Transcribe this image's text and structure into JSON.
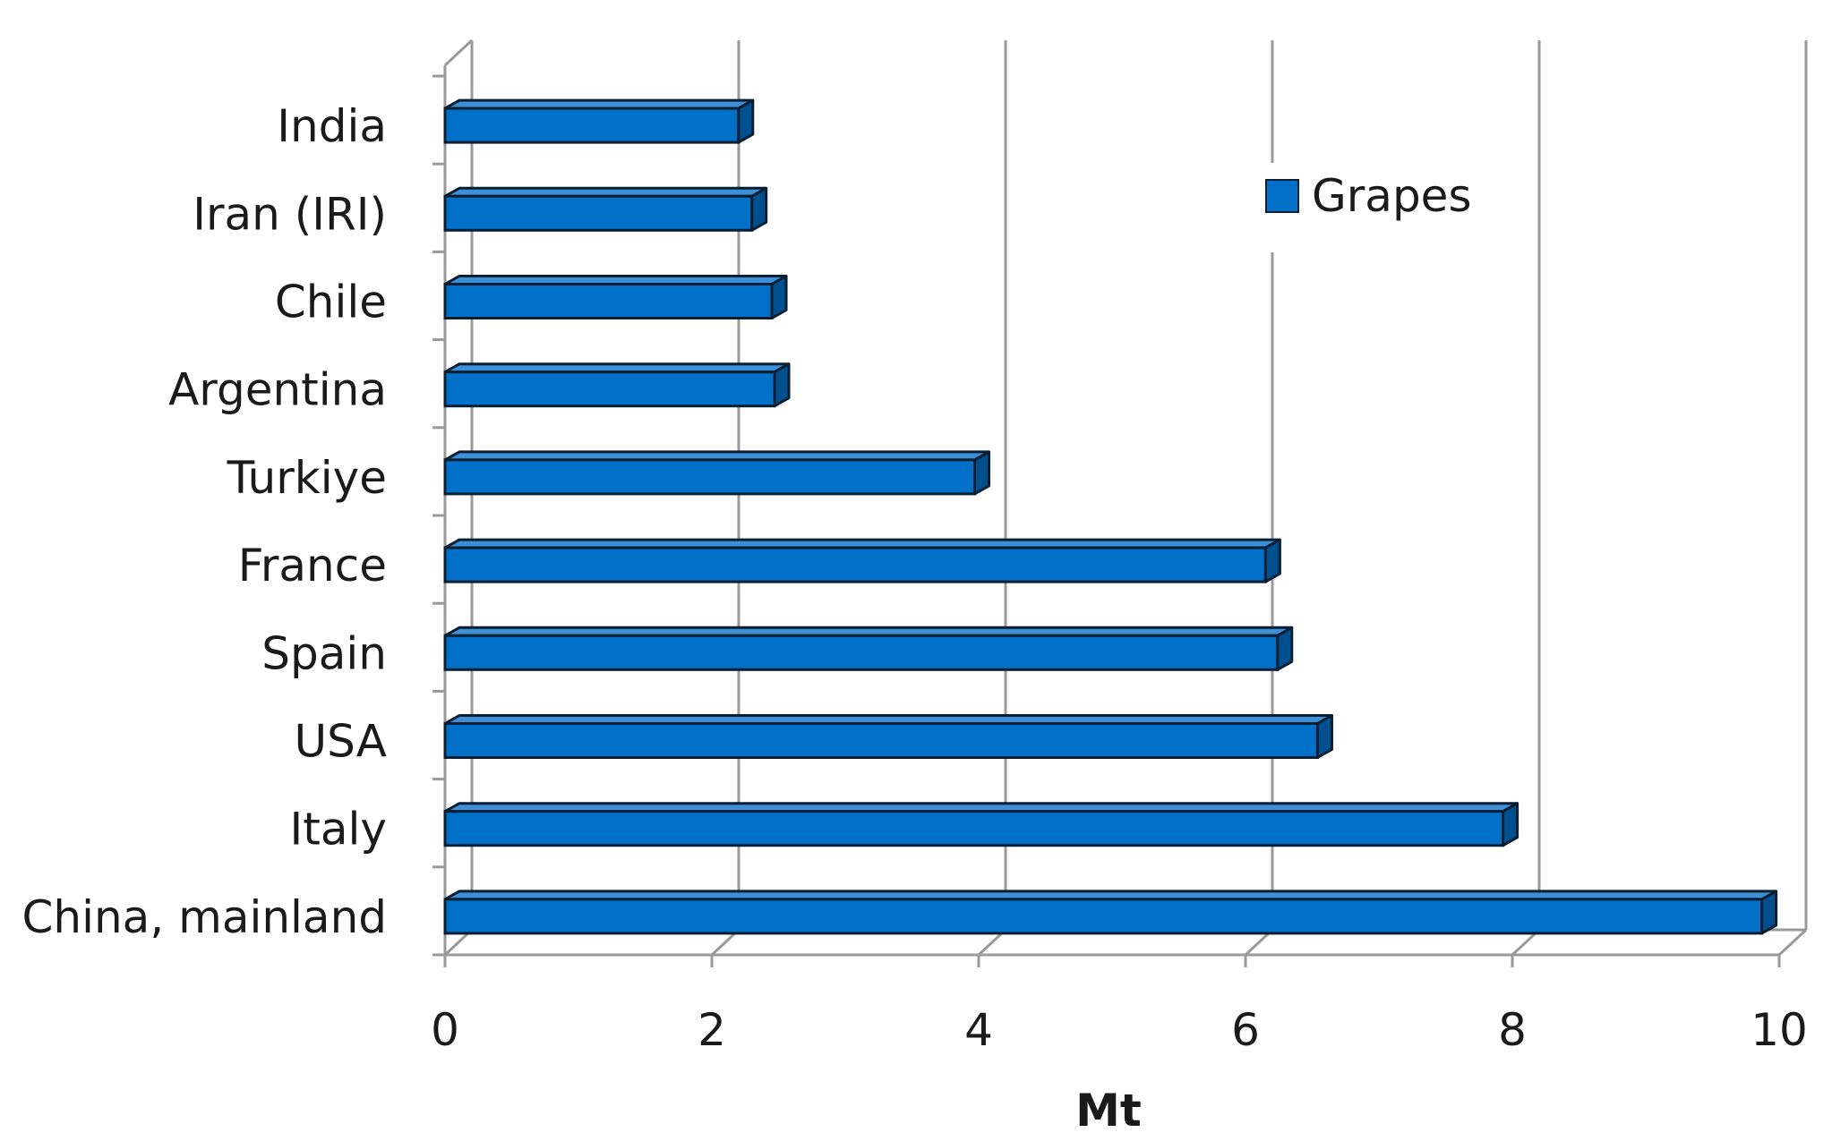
{
  "chart_data": {
    "type": "bar",
    "orientation": "horizontal",
    "style": "3d",
    "categories": [
      "India",
      "Iran (IRI)",
      "Chile",
      "Argentina",
      "Turkiye",
      "France",
      "Spain",
      "USA",
      "Italy",
      "China, mainland"
    ],
    "series": [
      {
        "name": "Grapes",
        "values": [
          2.2,
          2.3,
          2.45,
          2.47,
          3.97,
          6.15,
          6.24,
          6.54,
          7.93,
          9.87
        ],
        "color": "#0070c8"
      }
    ],
    "xlabel": "Mt",
    "xlim": [
      0,
      10
    ],
    "xticks": [
      0,
      2,
      4,
      6,
      8,
      10
    ],
    "xtick_labels": [
      "0",
      "2",
      "4",
      "6",
      "8",
      "10"
    ],
    "grid": true,
    "legend": {
      "position": "top-right",
      "label": "Grapes"
    }
  }
}
